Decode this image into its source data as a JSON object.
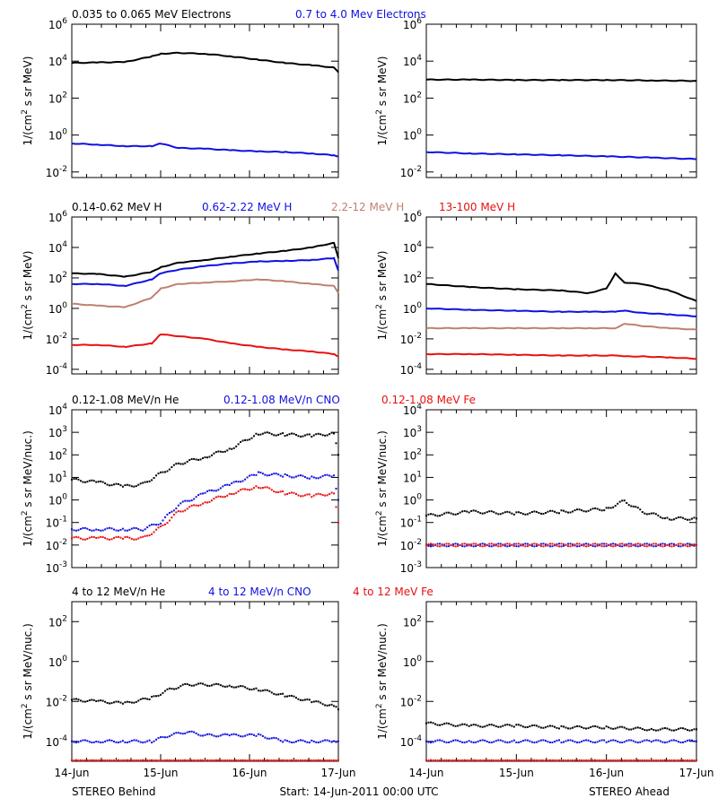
{
  "colors": {
    "black": "#000000",
    "blue": "#1010e0",
    "tan": "#c08070",
    "red": "#e81010"
  },
  "x_ticks": [
    "14-Jun",
    "15-Jun",
    "16-Jun",
    "17-Jun"
  ],
  "footer": {
    "left": "STEREO Behind",
    "center": "Start: 14-Jun-2011 00:00 UTC",
    "right": "STEREO Ahead"
  },
  "chart_data": [
    {
      "type": "line",
      "panel": "electrons-behind",
      "yscale": "log",
      "ylabel": "1/(cm2 s sr MeV)",
      "ylim": [
        0.005,
        1000000
      ],
      "xlim": [
        0,
        3
      ],
      "yticks": [
        {
          "label": "10^6",
          "value": 1000000
        },
        {
          "label": "10^4",
          "value": 10000
        },
        {
          "label": "10^2",
          "value": 100
        },
        {
          "label": "10^0",
          "value": 1
        },
        {
          "label": "10^-2",
          "value": 0.01
        }
      ],
      "x": [
        0,
        0.3,
        0.6,
        0.9,
        1.0,
        1.2,
        1.5,
        1.8,
        2.1,
        2.4,
        2.7,
        2.95,
        3.0
      ],
      "series": [
        {
          "name": "0.035 to 0.065 MeV Electrons",
          "color": "black",
          "values": [
            8000,
            8500,
            9000,
            18000,
            25000,
            28000,
            25000,
            18000,
            12000,
            8000,
            6000,
            4500,
            2500
          ]
        },
        {
          "name": "0.7 to 4.0 Mev Electrons",
          "color": "blue",
          "values": [
            0.35,
            0.3,
            0.25,
            0.25,
            0.35,
            0.2,
            0.18,
            0.15,
            0.13,
            0.12,
            0.1,
            0.08,
            0.07
          ]
        }
      ]
    },
    {
      "type": "line",
      "panel": "electrons-ahead",
      "yscale": "log",
      "ylabel": "1/(cm2 s sr MeV)",
      "ylim": [
        0.005,
        1000000
      ],
      "xlim": [
        0,
        3
      ],
      "yticks": [
        {
          "label": "10^6",
          "value": 1000000
        },
        {
          "label": "10^4",
          "value": 10000
        },
        {
          "label": "10^2",
          "value": 100
        },
        {
          "label": "10^0",
          "value": 1
        },
        {
          "label": "10^-2",
          "value": 0.01
        }
      ],
      "x": [
        0,
        0.5,
        1.0,
        1.5,
        2.0,
        2.5,
        3.0
      ],
      "series": [
        {
          "name": "",
          "color": "black",
          "values": [
            1000,
            1000,
            950,
            950,
            950,
            900,
            850
          ]
        },
        {
          "name": "",
          "color": "blue",
          "values": [
            0.12,
            0.1,
            0.09,
            0.08,
            0.07,
            0.06,
            0.05
          ]
        }
      ]
    },
    {
      "type": "line",
      "panel": "protons-behind",
      "yscale": "log",
      "ylabel": "1/(cm2 s sr MeV)",
      "ylim": [
        5e-05,
        1000000
      ],
      "xlim": [
        0,
        3
      ],
      "yticks": [
        {
          "label": "10^6",
          "value": 1000000
        },
        {
          "label": "10^4",
          "value": 10000
        },
        {
          "label": "10^2",
          "value": 100
        },
        {
          "label": "10^0",
          "value": 1
        },
        {
          "label": "10^-2",
          "value": 0.01
        },
        {
          "label": "10^-4",
          "value": 0.0001
        }
      ],
      "x": [
        0,
        0.3,
        0.6,
        0.9,
        1.0,
        1.2,
        1.5,
        1.8,
        2.1,
        2.4,
        2.7,
        2.95,
        3.0
      ],
      "series": [
        {
          "name": "0.14-0.62 MeV H",
          "color": "black",
          "values": [
            200,
            180,
            120,
            250,
            500,
            1000,
            1500,
            2500,
            4000,
            6000,
            10000,
            20000,
            2000
          ]
        },
        {
          "name": "0.62-2.22 MeV H",
          "color": "blue",
          "values": [
            40,
            40,
            30,
            80,
            200,
            350,
            600,
            900,
            1200,
            1300,
            1500,
            2000,
            300
          ]
        },
        {
          "name": "2.2-12 MeV H",
          "color": "tan",
          "values": [
            2,
            1.5,
            1.2,
            5,
            20,
            40,
            50,
            60,
            80,
            60,
            40,
            30,
            10
          ]
        },
        {
          "name": "13-100 MeV H",
          "color": "red",
          "values": [
            0.004,
            0.004,
            0.003,
            0.005,
            0.02,
            0.015,
            0.01,
            0.005,
            0.003,
            0.002,
            0.0015,
            0.001,
            0.0007
          ]
        }
      ]
    },
    {
      "type": "line",
      "panel": "protons-ahead",
      "yscale": "log",
      "ylabel": "1/(cm2 s sr MeV)",
      "ylim": [
        5e-05,
        1000000
      ],
      "xlim": [
        0,
        3
      ],
      "yticks": [
        {
          "label": "10^6",
          "value": 1000000
        },
        {
          "label": "10^4",
          "value": 10000
        },
        {
          "label": "10^2",
          "value": 100
        },
        {
          "label": "10^0",
          "value": 1
        },
        {
          "label": "10^-2",
          "value": 0.01
        },
        {
          "label": "10^-4",
          "value": 0.0001
        }
      ],
      "x": [
        0,
        0.5,
        1.0,
        1.5,
        1.8,
        2.0,
        2.1,
        2.2,
        2.4,
        2.7,
        3.0
      ],
      "series": [
        {
          "name": "",
          "color": "black",
          "values": [
            40,
            25,
            18,
            15,
            10,
            20,
            200,
            50,
            40,
            15,
            3
          ]
        },
        {
          "name": "",
          "color": "blue",
          "values": [
            1,
            0.8,
            0.7,
            0.6,
            0.6,
            0.6,
            0.6,
            0.7,
            0.5,
            0.4,
            0.3
          ]
        },
        {
          "name": "",
          "color": "tan",
          "values": [
            0.05,
            0.05,
            0.05,
            0.05,
            0.05,
            0.05,
            0.05,
            0.1,
            0.07,
            0.05,
            0.04
          ]
        },
        {
          "name": "",
          "color": "red",
          "values": [
            0.001,
            0.001,
            0.0009,
            0.0008,
            0.0008,
            0.0008,
            0.0008,
            0.0007,
            0.0007,
            0.0006,
            0.0005
          ]
        }
      ]
    },
    {
      "type": "scatter",
      "panel": "ions-low-behind",
      "yscale": "log",
      "ylabel": "1/(cm2 s sr MeV/nuc.)",
      "ylim": [
        0.001,
        10000
      ],
      "xlim": [
        0,
        3
      ],
      "yticks": [
        {
          "label": "10^4",
          "value": 10000
        },
        {
          "label": "10^3",
          "value": 1000
        },
        {
          "label": "10^2",
          "value": 100
        },
        {
          "label": "10^1",
          "value": 10
        },
        {
          "label": "10^0",
          "value": 1
        },
        {
          "label": "10^-1",
          "value": 0.1
        },
        {
          "label": "10^-2",
          "value": 0.01
        },
        {
          "label": "10^-3",
          "value": 0.001
        }
      ],
      "x": [
        0,
        0.3,
        0.6,
        0.8,
        1.0,
        1.2,
        1.5,
        1.8,
        2.1,
        2.4,
        2.7,
        2.95,
        3.0
      ],
      "series": [
        {
          "name": "0.12-1.08 MeV/n He",
          "color": "black",
          "values": [
            8,
            6,
            4,
            5,
            15,
            40,
            80,
            200,
            900,
            800,
            700,
            900,
            100
          ]
        },
        {
          "name": "0.12-1.08 MeV/n CNO",
          "color": "blue",
          "values": [
            0.05,
            0.05,
            0.05,
            0.05,
            0.1,
            0.6,
            2,
            5,
            15,
            12,
            10,
            12,
            1
          ]
        },
        {
          "name": "0.12-1.08 MeV Fe",
          "color": "red",
          "values": [
            0.02,
            0.02,
            0.02,
            0.02,
            0.06,
            0.3,
            0.8,
            2,
            4,
            2,
            1.5,
            2,
            0.1
          ]
        }
      ]
    },
    {
      "type": "scatter",
      "panel": "ions-low-ahead",
      "yscale": "log",
      "ylabel": "1/(cm2 s sr MeV/nuc.)",
      "ylim": [
        0.001,
        10000
      ],
      "xlim": [
        0,
        3
      ],
      "yticks": [
        {
          "label": "10^4",
          "value": 10000
        },
        {
          "label": "10^3",
          "value": 1000
        },
        {
          "label": "10^2",
          "value": 100
        },
        {
          "label": "10^1",
          "value": 10
        },
        {
          "label": "10^0",
          "value": 1
        },
        {
          "label": "10^-1",
          "value": 0.1
        },
        {
          "label": "10^-2",
          "value": 0.01
        },
        {
          "label": "10^-3",
          "value": 0.001
        }
      ],
      "x": [
        0,
        0.5,
        1.0,
        1.5,
        2.0,
        2.2,
        2.4,
        2.7,
        3.0
      ],
      "series": [
        {
          "name": "",
          "color": "black",
          "values": [
            0.2,
            0.3,
            0.25,
            0.3,
            0.4,
            0.9,
            0.3,
            0.15,
            0.15
          ]
        },
        {
          "name": "",
          "color": "blue",
          "values": [
            0.01,
            0.01,
            0.01,
            0.01,
            0.01,
            0.01,
            0.01,
            0.01,
            0.01
          ]
        },
        {
          "name": "",
          "color": "red",
          "values": [
            0.01,
            0.01,
            0.01,
            0.01,
            0.01,
            0.01,
            0.01,
            0.01,
            0.01
          ]
        }
      ]
    },
    {
      "type": "scatter",
      "panel": "ions-high-behind",
      "yscale": "log",
      "ylabel": "1/(cm2 s sr MeV/nuc.)",
      "ylim": [
        1e-05,
        1000
      ],
      "xlim": [
        0,
        3
      ],
      "yticks": [
        {
          "label": "10^2",
          "value": 100
        },
        {
          "label": "10^0",
          "value": 1
        },
        {
          "label": "10^-2",
          "value": 0.01
        },
        {
          "label": "10^-4",
          "value": 0.0001
        }
      ],
      "x": [
        0,
        0.3,
        0.6,
        0.9,
        1.1,
        1.3,
        1.5,
        1.8,
        2.1,
        2.4,
        2.7,
        2.95,
        3.0
      ],
      "series": [
        {
          "name": "4 to 12 MeV/n He",
          "color": "black",
          "values": [
            0.012,
            0.01,
            0.008,
            0.015,
            0.04,
            0.07,
            0.07,
            0.06,
            0.04,
            0.02,
            0.01,
            0.006,
            0.004
          ]
        },
        {
          "name": "4 to 12 MeV/n CNO",
          "color": "blue",
          "values": [
            0.0001,
            0.0001,
            0.0001,
            0.0001,
            0.0002,
            0.0003,
            0.0002,
            0.0002,
            0.0002,
            0.0001,
            0.0001,
            0.0001,
            0.0001
          ]
        },
        {
          "name": "4 to 12 MeV Fe",
          "color": "red",
          "values": [
            1e-05,
            1e-05,
            1e-05,
            1e-05,
            1e-05,
            1e-05,
            1e-05,
            1e-05,
            1e-05,
            1e-05,
            1e-05,
            1e-05,
            1e-05
          ]
        }
      ]
    },
    {
      "type": "scatter",
      "panel": "ions-high-ahead",
      "yscale": "log",
      "ylabel": "1/(cm2 s sr MeV/nuc.)",
      "ylim": [
        1e-05,
        1000
      ],
      "xlim": [
        0,
        3
      ],
      "yticks": [
        {
          "label": "10^2",
          "value": 100
        },
        {
          "label": "10^0",
          "value": 1
        },
        {
          "label": "10^-2",
          "value": 0.01
        },
        {
          "label": "10^-4",
          "value": 0.0001
        }
      ],
      "x": [
        0,
        0.5,
        1.0,
        1.5,
        2.0,
        2.5,
        3.0
      ],
      "series": [
        {
          "name": "",
          "color": "black",
          "values": [
            0.0008,
            0.0006,
            0.0006,
            0.0005,
            0.0005,
            0.0004,
            0.0004
          ]
        },
        {
          "name": "",
          "color": "blue",
          "values": [
            0.0001,
            0.0001,
            0.0001,
            0.0001,
            0.0001,
            0.0001,
            0.0001
          ]
        },
        {
          "name": "",
          "color": "red",
          "values": [
            1e-05,
            1e-05,
            1e-05,
            1e-05,
            1e-05,
            1e-05,
            1e-05
          ]
        }
      ]
    }
  ]
}
